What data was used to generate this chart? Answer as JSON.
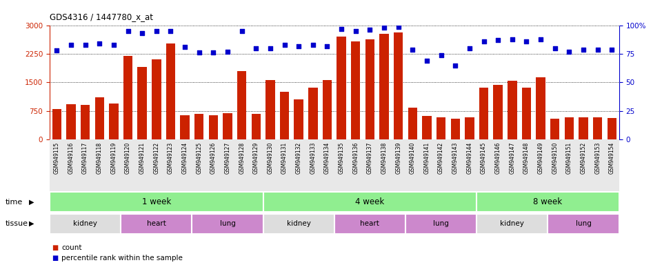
{
  "title": "GDS4316 / 1447780_x_at",
  "samples": [
    "GSM949115",
    "GSM949116",
    "GSM949117",
    "GSM949118",
    "GSM949119",
    "GSM949120",
    "GSM949121",
    "GSM949122",
    "GSM949123",
    "GSM949124",
    "GSM949125",
    "GSM949126",
    "GSM949127",
    "GSM949128",
    "GSM949129",
    "GSM949130",
    "GSM949131",
    "GSM949132",
    "GSM949133",
    "GSM949134",
    "GSM949135",
    "GSM949136",
    "GSM949137",
    "GSM949138",
    "GSM949139",
    "GSM949140",
    "GSM949141",
    "GSM949142",
    "GSM949143",
    "GSM949144",
    "GSM949145",
    "GSM949146",
    "GSM949147",
    "GSM949148",
    "GSM949149",
    "GSM949150",
    "GSM949151",
    "GSM949152",
    "GSM949153",
    "GSM949154"
  ],
  "counts": [
    800,
    930,
    900,
    1100,
    950,
    2200,
    1900,
    2100,
    2520,
    630,
    680,
    640,
    690,
    1800,
    680,
    1560,
    1250,
    1050,
    1360,
    1560,
    2700,
    2580,
    2640,
    2780,
    2820,
    830,
    610,
    580,
    550,
    590,
    1370,
    1430,
    1540,
    1360,
    1640,
    550,
    590,
    580,
    580,
    570
  ],
  "percentiles": [
    78,
    83,
    83,
    84,
    83,
    95,
    93,
    95,
    95,
    81,
    76,
    76,
    77,
    95,
    80,
    80,
    83,
    82,
    83,
    82,
    97,
    95,
    96,
    98,
    99,
    79,
    69,
    74,
    65,
    80,
    86,
    87,
    88,
    86,
    88,
    80,
    77,
    79,
    79,
    79
  ],
  "bar_color": "#cc2200",
  "dot_color": "#0000cc",
  "ylim_left": [
    0,
    3000
  ],
  "ylim_right": [
    0,
    100
  ],
  "yticks_left": [
    0,
    750,
    1500,
    2250,
    3000
  ],
  "yticks_right": [
    0,
    25,
    50,
    75,
    100
  ],
  "time_groups": [
    {
      "label": "1 week",
      "start": 0,
      "end": 15,
      "color": "#90ee90"
    },
    {
      "label": "4 week",
      "start": 15,
      "end": 30,
      "color": "#90ee90"
    },
    {
      "label": "8 week",
      "start": 30,
      "end": 40,
      "color": "#90ee90"
    }
  ],
  "tissue_groups": [
    {
      "label": "kidney",
      "start": 0,
      "end": 5,
      "color": "#dddddd"
    },
    {
      "label": "heart",
      "start": 5,
      "end": 10,
      "color": "#cc88cc"
    },
    {
      "label": "lung",
      "start": 10,
      "end": 15,
      "color": "#cc88cc"
    },
    {
      "label": "kidney",
      "start": 15,
      "end": 20,
      "color": "#dddddd"
    },
    {
      "label": "heart",
      "start": 20,
      "end": 25,
      "color": "#cc88cc"
    },
    {
      "label": "lung",
      "start": 25,
      "end": 30,
      "color": "#cc88cc"
    },
    {
      "label": "kidney",
      "start": 30,
      "end": 35,
      "color": "#dddddd"
    },
    {
      "label": "lung",
      "start": 35,
      "end": 40,
      "color": "#cc88cc"
    }
  ],
  "bg_color": "#ffffff",
  "xtick_bg": "#e8e8e8",
  "time_label": "time",
  "tissue_label": "tissue"
}
